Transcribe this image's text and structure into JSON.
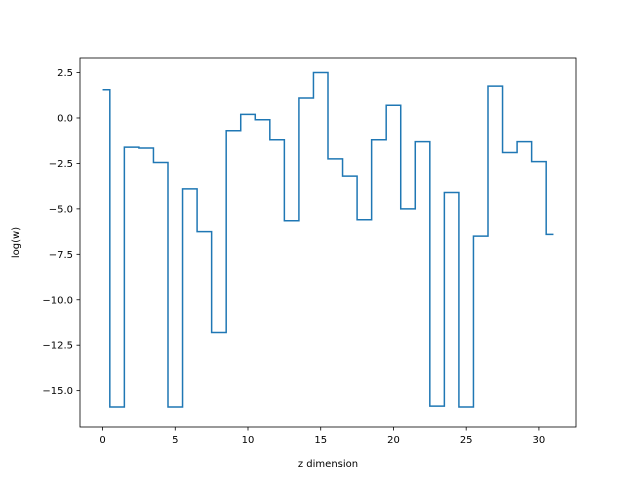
{
  "chart_data": {
    "type": "line",
    "drawstyle": "steps-mid",
    "xlabel": "z dimension",
    "ylabel": "log(w)",
    "xlim": [
      -1.55,
      32.55
    ],
    "ylim": [
      -17.0,
      3.3
    ],
    "xticks": [
      0,
      5,
      10,
      15,
      20,
      25,
      30
    ],
    "yticks": [
      2.5,
      0.0,
      -2.5,
      -5.0,
      -7.5,
      -10.0,
      -12.5,
      -15.0
    ],
    "xtick_labels": [
      "0",
      "5",
      "10",
      "15",
      "20",
      "25",
      "30"
    ],
    "ytick_labels": [
      "2.5",
      "0.0",
      "−2.5",
      "−5.0",
      "−7.5",
      "−10.0",
      "−12.5",
      "−15.0"
    ],
    "grid": false,
    "line_color": "#1f77b4",
    "series": [
      {
        "x": [
          0,
          1,
          2,
          3,
          4,
          5,
          6,
          7,
          8,
          9,
          10,
          11,
          12,
          13,
          14,
          15,
          16,
          17,
          18,
          19,
          20,
          21,
          22,
          23,
          24,
          25,
          26,
          27,
          28,
          29,
          30,
          31
        ],
        "values": [
          1.55,
          -15.9,
          -1.6,
          -1.65,
          -2.45,
          -15.9,
          -3.9,
          -6.25,
          -11.8,
          -0.7,
          0.2,
          -0.1,
          -1.2,
          -5.65,
          1.1,
          2.5,
          -2.25,
          -3.2,
          -5.6,
          -1.2,
          0.7,
          -5.0,
          -1.3,
          -15.85,
          -4.1,
          -15.9,
          -6.5,
          1.75,
          -1.9,
          -1.3,
          -2.4,
          -6.4
        ]
      }
    ]
  }
}
